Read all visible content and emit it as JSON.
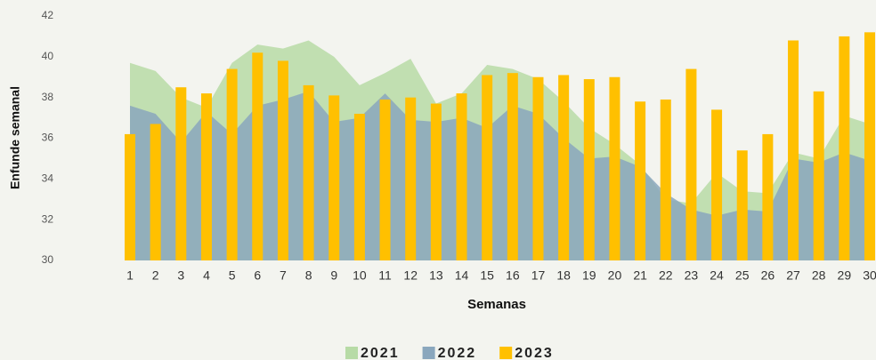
{
  "chart_data": {
    "type": "bar",
    "x_label": "Semanas",
    "y_label": "Enfunde semanal",
    "categories": [
      "1",
      "2",
      "3",
      "4",
      "5",
      "6",
      "7",
      "8",
      "9",
      "10",
      "11",
      "12",
      "13",
      "14",
      "15",
      "16",
      "17",
      "18",
      "19",
      "20",
      "21",
      "22",
      "23",
      "24",
      "25",
      "26",
      "27",
      "28",
      "29",
      "30"
    ],
    "series": [
      {
        "name": "2021",
        "type": "area",
        "color": "#b7dba6",
        "values": [
          39.7,
          39.3,
          38.0,
          37.5,
          39.7,
          40.6,
          40.4,
          40.8,
          40.0,
          38.6,
          39.2,
          39.9,
          37.7,
          38.2,
          39.6,
          39.4,
          38.9,
          37.8,
          36.5,
          35.7,
          34.7,
          33.0,
          32.8,
          34.3,
          33.4,
          33.3,
          35.3,
          35.0,
          37.1,
          36.7
        ]
      },
      {
        "name": "2022",
        "type": "area",
        "color": "#8aa7bd",
        "values": [
          37.6,
          37.2,
          35.8,
          37.3,
          36.2,
          37.6,
          37.9,
          38.3,
          36.8,
          37.0,
          38.2,
          36.9,
          36.8,
          37.0,
          36.5,
          37.6,
          37.2,
          36.0,
          35.0,
          35.1,
          34.6,
          33.3,
          32.5,
          32.2,
          32.5,
          32.4,
          35.0,
          34.8,
          35.3,
          34.9
        ]
      },
      {
        "name": "2023",
        "type": "bar",
        "color": "#ffc000",
        "values": [
          36.2,
          36.7,
          38.5,
          38.2,
          39.4,
          40.2,
          39.8,
          38.6,
          38.1,
          37.2,
          37.9,
          38.0,
          37.7,
          38.2,
          39.1,
          39.2,
          39.0,
          39.1,
          38.9,
          39.0,
          37.8,
          37.9,
          39.4,
          37.4,
          35.4,
          36.2,
          40.8,
          38.3,
          41.0,
          41.2
        ]
      }
    ],
    "ylim": [
      30,
      42
    ],
    "yticks": [
      30,
      32,
      34,
      36,
      38,
      40,
      42
    ],
    "grid": false,
    "legend": "bottom"
  }
}
